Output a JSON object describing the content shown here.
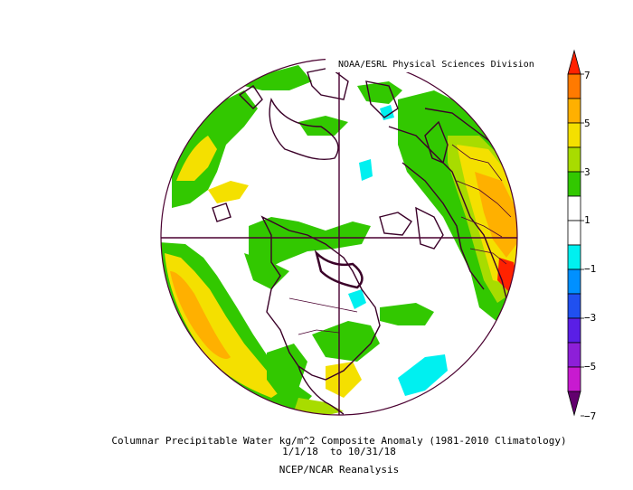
{
  "credit": "NOAA/ESRL Physical Sciences Division",
  "caption": {
    "line1": "Columnar Precipitable Water kg/m^2 Composite Anomaly (1981-2010 Climatology)",
    "line2": "1/1/18  to 10/31/18",
    "line3": "NCEP/NCAR Reanalysis"
  },
  "colorbar": {
    "ticks": [
      "7",
      "5",
      "3",
      "1",
      "−1",
      "−3",
      "−5",
      "−7"
    ],
    "bands": [
      {
        "range": "6 to 7",
        "color": "#ff2200"
      },
      {
        "range": "5 to 6",
        "color": "#ff7a00"
      },
      {
        "range": "4 to 5",
        "color": "#ffb000"
      },
      {
        "range": "3 to 4",
        "color": "#f4e000"
      },
      {
        "range": "2 to 3",
        "color": "#a8dc00"
      },
      {
        "range": "1 to 2",
        "color": "#32c800"
      },
      {
        "range": "0 to 1",
        "color": "#ffffff"
      },
      {
        "range": "-1 to 0",
        "color": "#ffffff"
      },
      {
        "range": "-2 to -1",
        "color": "#00f0f0"
      },
      {
        "range": "-3 to -2",
        "color": "#0090ff"
      },
      {
        "range": "-4 to -3",
        "color": "#2050f0"
      },
      {
        "range": "-5 to -4",
        "color": "#5a1fe6"
      },
      {
        "range": "-6 to -5",
        "color": "#8d1fd8"
      },
      {
        "range": "-7 to -6",
        "color": "#c81ad0"
      },
      {
        "range": "below -7",
        "color": "#62006e"
      }
    ]
  },
  "map": {
    "projection": "north-polar-stereographic",
    "colors": {
      "border": "#5b0033",
      "coast": "#3a0028",
      "land_line": "#4a0030"
    }
  }
}
